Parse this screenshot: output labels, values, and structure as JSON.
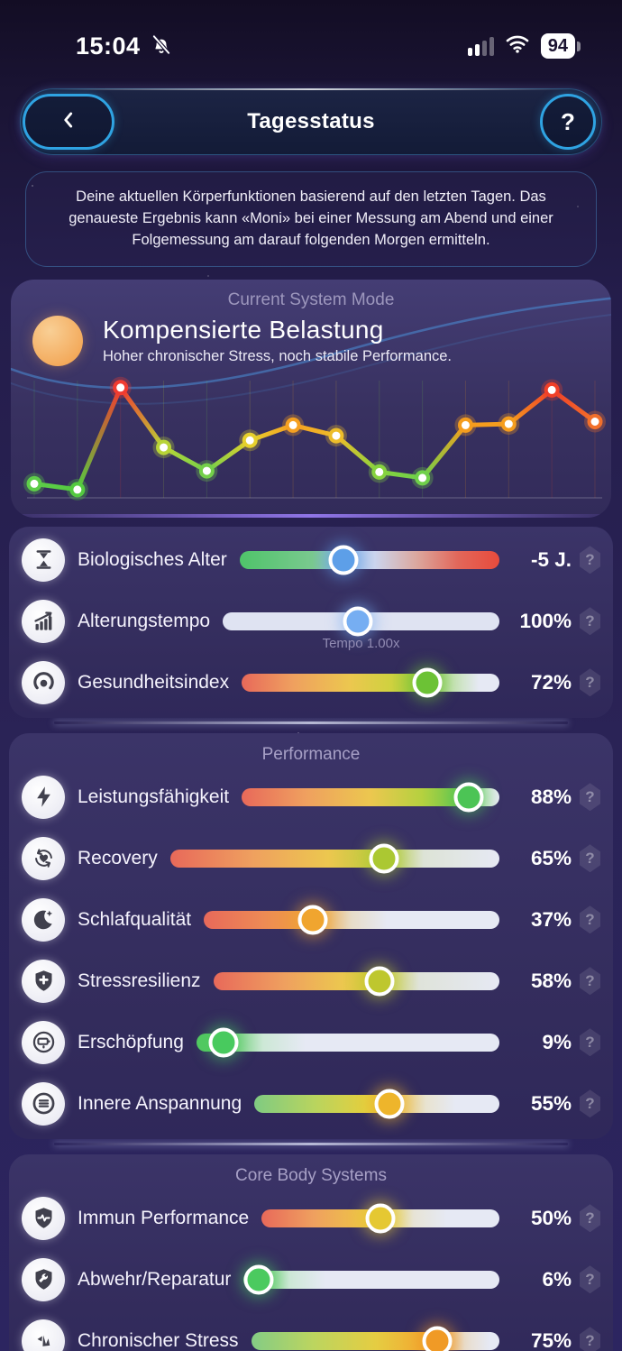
{
  "status_bar": {
    "time": "15:04",
    "battery": "94",
    "icons": [
      "bell-muted-icon",
      "signal-icon",
      "wifi-icon",
      "battery-icon"
    ]
  },
  "header": {
    "title": "Tagesstatus",
    "back_icon": "chevron-left-icon",
    "help_label": "?"
  },
  "info": {
    "text": "Deine aktuellen Körperfunktionen basierend auf den letzten Tagen. Das genaueste Ergebnis kann «Moni» bei einer Messung am Abend und einer Folgemessung am darauf folgenden Morgen ermitteln."
  },
  "mode_card": {
    "kicker": "Current System Mode",
    "title": "Kompensierte Belastung",
    "subtitle": "Hoher chronischer Stress, noch stabile Performance.",
    "orb_color": "#f3a95a"
  },
  "chart_data": {
    "type": "line",
    "x": [
      1,
      2,
      3,
      4,
      5,
      6,
      7,
      8,
      9,
      10,
      11,
      12,
      13,
      14
    ],
    "values": [
      12,
      7,
      94,
      43,
      23,
      49,
      62,
      53,
      22,
      17,
      62,
      63,
      92,
      65
    ],
    "point_colors": [
      "#5ecd49",
      "#54ca40",
      "#f13b30",
      "#b8d437",
      "#74d04a",
      "#e6d02c",
      "#f5a021",
      "#edbd2a",
      "#86d33f",
      "#6fd04a",
      "#f59d1e",
      "#f59d1e",
      "#f04028",
      "#f2702b"
    ],
    "title": "",
    "xlabel": "",
    "ylabel": "",
    "ylim": [
      0,
      100
    ],
    "grid": true,
    "legend": false
  },
  "sections": [
    {
      "title": "",
      "rows": [
        {
          "id": "biologisches-alter",
          "icon": "hourglass-icon",
          "label": "Biologisches Alter",
          "value": "-5 J.",
          "percent": 40,
          "knob_color": "#5d9fe8",
          "track_stops": [
            {
              "at": 0,
              "c": "#4fc46a"
            },
            {
              "at": 28,
              "c": "#7ac98f"
            },
            {
              "at": 40,
              "c": "#8fb8e8"
            },
            {
              "at": 52,
              "c": "#ccd5ee"
            },
            {
              "at": 68,
              "c": "#dba89f"
            },
            {
              "at": 84,
              "c": "#e2675a"
            },
            {
              "at": 100,
              "c": "#e84b3c"
            }
          ],
          "sublabel": ""
        },
        {
          "id": "alterungstempo",
          "icon": "chart-arrow-icon",
          "label": "Alterungstempo",
          "value": "100%",
          "percent": 49,
          "knob_color": "#76aef2",
          "track_stops": [
            {
              "at": 0,
              "c": "#dfe3f2"
            },
            {
              "at": 100,
              "c": "#dfe3f2"
            }
          ],
          "sublabel": "Tempo 1.00x"
        },
        {
          "id": "gesundheitsindex",
          "icon": "gauge-icon",
          "label": "Gesundheitsindex",
          "value": "72%",
          "percent": 72,
          "knob_color": "#6cc235",
          "track_stops": [
            {
              "at": 0,
              "c": "#e8695a"
            },
            {
              "at": 20,
              "c": "#efa05f"
            },
            {
              "at": 42,
              "c": "#ecc74f"
            },
            {
              "at": 58,
              "c": "#cfd13f"
            },
            {
              "at": 72,
              "c": "#7cc83e"
            },
            {
              "at": 82,
              "c": "#c4e2b2"
            },
            {
              "at": 92,
              "c": "#e6e9f4"
            },
            {
              "at": 100,
              "c": "#e6e9f4"
            }
          ],
          "sublabel": ""
        }
      ]
    },
    {
      "title": "Performance",
      "rows": [
        {
          "id": "leistungsfaehigkeit",
          "icon": "lightning-icon",
          "label": "Leistungsfähigkeit",
          "value": "88%",
          "percent": 88,
          "knob_color": "#4cc455",
          "track_stops": [
            {
              "at": 0,
              "c": "#e8695a"
            },
            {
              "at": 25,
              "c": "#efa05f"
            },
            {
              "at": 50,
              "c": "#ecc74f"
            },
            {
              "at": 70,
              "c": "#b5d13f"
            },
            {
              "at": 88,
              "c": "#57c653"
            },
            {
              "at": 95,
              "c": "#cfe9cf"
            },
            {
              "at": 100,
              "c": "#e6e9f4"
            }
          ],
          "sublabel": ""
        },
        {
          "id": "recovery",
          "icon": "recovery-icon",
          "label": "Recovery",
          "value": "65%",
          "percent": 65,
          "knob_color": "#abc832",
          "track_stops": [
            {
              "at": 0,
              "c": "#e8695a"
            },
            {
              "at": 25,
              "c": "#efa05f"
            },
            {
              "at": 48,
              "c": "#ecc74f"
            },
            {
              "at": 65,
              "c": "#b3cc3b"
            },
            {
              "at": 77,
              "c": "#dde3d6"
            },
            {
              "at": 100,
              "c": "#e6e9f4"
            }
          ],
          "sublabel": ""
        },
        {
          "id": "schlafqualitaet",
          "icon": "moon-icon",
          "label": "Schlafqualität",
          "value": "37%",
          "percent": 37,
          "knob_color": "#f0a52f",
          "track_stops": [
            {
              "at": 0,
              "c": "#e8695a"
            },
            {
              "at": 20,
              "c": "#ed8a55"
            },
            {
              "at": 37,
              "c": "#f0a43a"
            },
            {
              "at": 50,
              "c": "#e7dcc8"
            },
            {
              "at": 62,
              "c": "#e6e9f4"
            },
            {
              "at": 100,
              "c": "#e6e9f4"
            }
          ],
          "sublabel": ""
        },
        {
          "id": "stressresilienz",
          "icon": "shield-plus-icon",
          "label": "Stressresilienz",
          "value": "58%",
          "percent": 58,
          "knob_color": "#bec72e",
          "track_stops": [
            {
              "at": 0,
              "c": "#e8695a"
            },
            {
              "at": 25,
              "c": "#efa05f"
            },
            {
              "at": 45,
              "c": "#ecc74f"
            },
            {
              "at": 58,
              "c": "#c6cc35"
            },
            {
              "at": 72,
              "c": "#dfe3da"
            },
            {
              "at": 100,
              "c": "#e6e9f4"
            }
          ],
          "sublabel": ""
        },
        {
          "id": "erschoepfung",
          "icon": "battery-low-icon",
          "label": "Erschöpfung",
          "value": "9%",
          "percent": 9,
          "knob_color": "#48ca5e",
          "track_stops": [
            {
              "at": 0,
              "c": "#52c862"
            },
            {
              "at": 9,
              "c": "#57ca5f"
            },
            {
              "at": 22,
              "c": "#cde8d6"
            },
            {
              "at": 36,
              "c": "#e6e9f4"
            },
            {
              "at": 100,
              "c": "#e6e9f4"
            }
          ],
          "sublabel": ""
        },
        {
          "id": "innere-anspannung",
          "icon": "lines-circle-icon",
          "label": "Innere Anspannung",
          "value": "55%",
          "percent": 55,
          "knob_color": "#eeb52b",
          "track_stops": [
            {
              "at": 0,
              "c": "#7fcb82"
            },
            {
              "at": 25,
              "c": "#b9d45e"
            },
            {
              "at": 45,
              "c": "#e3cf3f"
            },
            {
              "at": 55,
              "c": "#edb832"
            },
            {
              "at": 70,
              "c": "#e8e3d0"
            },
            {
              "at": 82,
              "c": "#e6e9f4"
            },
            {
              "at": 100,
              "c": "#e6e9f4"
            }
          ],
          "sublabel": ""
        }
      ]
    },
    {
      "title": "Core Body Systems",
      "rows": [
        {
          "id": "immun-performance",
          "icon": "shield-pulse-icon",
          "label": "Immun Performance",
          "value": "50%",
          "percent": 50,
          "knob_color": "#e5c832",
          "track_stops": [
            {
              "at": 0,
              "c": "#e8695a"
            },
            {
              "at": 22,
              "c": "#efa05f"
            },
            {
              "at": 40,
              "c": "#eebf4a"
            },
            {
              "at": 50,
              "c": "#e9cb38"
            },
            {
              "at": 64,
              "c": "#e7e4d6"
            },
            {
              "at": 78,
              "c": "#e6e9f4"
            },
            {
              "at": 100,
              "c": "#e6e9f4"
            }
          ],
          "sublabel": ""
        },
        {
          "id": "abwehr-reparatur",
          "icon": "shield-wrench-icon",
          "label": "Abwehr/Reparatur",
          "value": "6%",
          "percent": 6,
          "knob_color": "#4bca5f",
          "track_stops": [
            {
              "at": 0,
              "c": "#55c966"
            },
            {
              "at": 6,
              "c": "#5bcb60"
            },
            {
              "at": 18,
              "c": "#cde8d6"
            },
            {
              "at": 32,
              "c": "#e6e9f4"
            },
            {
              "at": 100,
              "c": "#e6e9f4"
            }
          ],
          "sublabel": ""
        },
        {
          "id": "chronischer-stress",
          "icon": "zigzag-icon",
          "label": "Chronischer Stress",
          "value": "75%",
          "percent": 75,
          "knob_color": "#f09a26",
          "track_stops": [
            {
              "at": 0,
              "c": "#84cc85"
            },
            {
              "at": 25,
              "c": "#bcd55f"
            },
            {
              "at": 50,
              "c": "#e5cd42"
            },
            {
              "at": 65,
              "c": "#f0b135"
            },
            {
              "at": 75,
              "c": "#f09a26"
            },
            {
              "at": 86,
              "c": "#e9ddcc"
            },
            {
              "at": 96,
              "c": "#e6e9f4"
            },
            {
              "at": 100,
              "c": "#e6e9f4"
            }
          ],
          "sublabel": ""
        }
      ]
    }
  ],
  "colors": {
    "accent_cyan": "#2fa3e2",
    "card_bg": "#352e60",
    "track_rest": "#e6e9f4",
    "purple_glow": "#a082ff",
    "kicker_gray": "#9d97bd"
  }
}
